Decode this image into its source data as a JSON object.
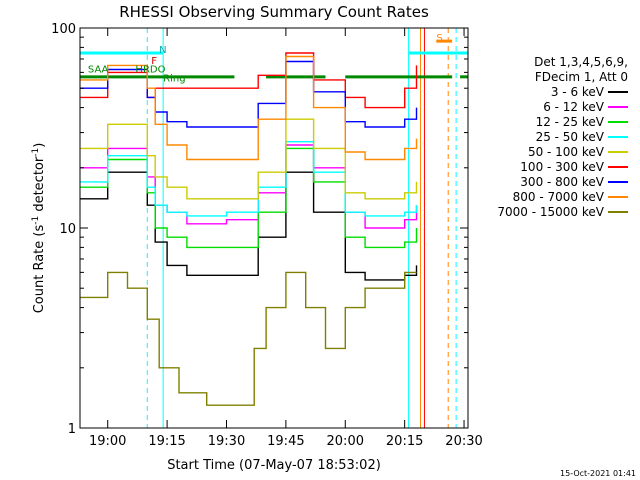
{
  "chart_data": {
    "type": "line",
    "title": "RHESSI Observing Summary Count Rates",
    "xlabel": "Start Time (07-May-07 18:53:02)",
    "ylabel_main": "Count Rate (s",
    "ylabel_sup1": "-1",
    "ylabel_mid": " detector",
    "ylabel_sup2": "-1",
    "ylabel_end": ")",
    "yscale": "log",
    "ylim": [
      1,
      100
    ],
    "xlim": [
      "18:53",
      "20:31"
    ],
    "x_ticks": [
      "19:00",
      "19:15",
      "19:30",
      "19:45",
      "20:00",
      "20:15",
      "20:30"
    ],
    "y_ticks": [
      "1",
      "10",
      "100"
    ],
    "legend_header": [
      "Det 1,3,4,5,6,9,",
      "FDecim 1, Att 0"
    ],
    "series": [
      {
        "name": "3 - 6 keV",
        "color": "#000000",
        "x": [
          "18:53",
          "19:00",
          "19:10",
          "19:12",
          "19:15",
          "19:20",
          "19:30",
          "19:38",
          "19:45",
          "19:52",
          "20:00",
          "20:05",
          "20:15",
          "20:18"
        ],
        "y": [
          14,
          19,
          13,
          8.5,
          6.5,
          5.8,
          5.8,
          9,
          19,
          12,
          6,
          5.5,
          5.8,
          6.5
        ]
      },
      {
        "name": "6 - 12 keV",
        "color": "#ff00ff",
        "x": [
          "18:53",
          "19:00",
          "19:10",
          "19:12",
          "19:15",
          "19:20",
          "19:30",
          "19:38",
          "19:45",
          "19:52",
          "20:00",
          "20:05",
          "20:15",
          "20:18"
        ],
        "y": [
          20,
          25,
          18,
          13,
          12,
          10.5,
          11,
          15,
          26,
          20,
          12,
          10,
          11,
          13
        ]
      },
      {
        "name": "12 - 25 keV",
        "color": "#00dd00",
        "x": [
          "18:53",
          "19:00",
          "19:10",
          "19:12",
          "19:15",
          "19:20",
          "19:30",
          "19:38",
          "19:45",
          "19:52",
          "20:00",
          "20:05",
          "20:15",
          "20:18"
        ],
        "y": [
          16,
          22,
          15,
          10,
          9,
          8,
          8,
          12,
          25,
          17,
          9,
          8,
          8.5,
          10
        ]
      },
      {
        "name": "25 - 50 keV",
        "color": "#00ffff",
        "x": [
          "18:53",
          "19:00",
          "19:10",
          "19:12",
          "19:15",
          "19:20",
          "19:30",
          "19:38",
          "19:45",
          "19:52",
          "20:00",
          "20:05",
          "20:15",
          "20:18"
        ],
        "y": [
          17,
          23,
          16,
          13,
          12,
          11.5,
          12,
          16,
          27,
          19,
          12,
          11.5,
          12,
          13
        ]
      },
      {
        "name": "50 - 100 keV",
        "color": "#cccc00",
        "x": [
          "18:53",
          "19:00",
          "19:10",
          "19:12",
          "19:15",
          "19:20",
          "19:30",
          "19:38",
          "19:45",
          "19:52",
          "20:00",
          "20:05",
          "20:15",
          "20:18"
        ],
        "y": [
          25,
          33,
          23,
          18,
          16,
          14,
          14,
          19,
          35,
          25,
          15,
          14,
          15,
          17
        ]
      },
      {
        "name": "100 - 300 keV",
        "color": "#ff0000",
        "x": [
          "18:53",
          "19:00",
          "19:10",
          "19:12",
          "19:15",
          "19:20",
          "19:30",
          "19:38",
          "19:45",
          "19:52",
          "20:00",
          "20:05",
          "20:15",
          "20:18"
        ],
        "y": [
          45,
          60,
          45,
          50,
          50,
          50,
          50,
          58,
          75,
          55,
          45,
          40,
          50,
          65
        ]
      },
      {
        "name": "300 - 800 keV",
        "color": "#0000ff",
        "x": [
          "18:53",
          "19:00",
          "19:10",
          "19:12",
          "19:15",
          "19:20",
          "19:30",
          "19:38",
          "19:45",
          "19:52",
          "20:00",
          "20:05",
          "20:15",
          "20:18"
        ],
        "y": [
          50,
          62,
          45,
          38,
          34,
          32,
          32,
          42,
          68,
          48,
          34,
          32,
          35,
          40
        ]
      },
      {
        "name": "800 - 7000 keV",
        "color": "#ff8800",
        "x": [
          "18:53",
          "19:00",
          "19:10",
          "19:12",
          "19:15",
          "19:20",
          "19:30",
          "19:38",
          "19:45",
          "19:52",
          "20:00",
          "20:05",
          "20:15",
          "20:18"
        ],
        "y": [
          55,
          65,
          50,
          33,
          26,
          22,
          22,
          35,
          72,
          40,
          24,
          22,
          25,
          28
        ]
      },
      {
        "name": "7000 - 15000 keV",
        "color": "#808000",
        "x": [
          "18:53",
          "19:00",
          "19:05",
          "19:10",
          "19:13",
          "19:18",
          "19:25",
          "19:30",
          "19:37",
          "19:40",
          "19:45",
          "19:50",
          "19:55",
          "20:00",
          "20:05",
          "20:15",
          "20:18"
        ],
        "y": [
          4.5,
          6,
          5,
          3.5,
          2,
          1.5,
          1.3,
          1.3,
          2.5,
          4,
          6,
          4,
          2.5,
          4,
          5,
          6,
          6
        ]
      }
    ],
    "annotations": [
      {
        "text": "N",
        "x": "19:13",
        "y": 75,
        "color": "#00aaaa"
      },
      {
        "text": "F",
        "x": "19:11",
        "y": 66,
        "color": "#cc0000"
      },
      {
        "text": "SAA",
        "x": "18:55",
        "y": 60,
        "color": "#008800"
      },
      {
        "text": "HRDO",
        "x": "19:07",
        "y": 60,
        "color": "#008800"
      },
      {
        "text": "Ring",
        "x": "19:14",
        "y": 54,
        "color": "#008800"
      },
      {
        "text": "S",
        "x": "20:23",
        "y": 86,
        "color": "#ff8800"
      }
    ],
    "flag_bars": [
      {
        "name": "attenuator",
        "color": "#00ffff",
        "segments": [
          [
            "18:53",
            "19:14"
          ],
          [
            "20:16",
            "20:31"
          ]
        ],
        "y": 75
      },
      {
        "name": "decimation",
        "color": "#008800",
        "segments": [
          [
            "18:53",
            "19:32"
          ],
          [
            "19:40",
            "19:55"
          ],
          [
            "20:00",
            "20:27"
          ],
          [
            "20:29",
            "20:31"
          ]
        ],
        "y": 57
      },
      {
        "name": "sunlight",
        "color": "#ff8800",
        "segments": [
          [
            "20:23",
            "20:27"
          ]
        ],
        "y": 86
      }
    ],
    "vlines": [
      {
        "x": "19:10",
        "color": "#00ffff",
        "dashed": true
      },
      {
        "x": "19:14",
        "color": "#00ffff",
        "dashed": false
      },
      {
        "x": "20:16",
        "color": "#00ffff",
        "dashed": false
      },
      {
        "x": "20:19",
        "color": "#ff8800",
        "dashed": false
      },
      {
        "x": "20:20",
        "color": "#ff0000",
        "dashed": false
      },
      {
        "x": "20:26",
        "color": "#ff8800",
        "dashed": true
      },
      {
        "x": "20:28",
        "color": "#00ffff",
        "dashed": true
      }
    ],
    "grid": false,
    "legend_position": "right"
  },
  "footer": {
    "date_label": "15-Oct-2021 01:41"
  }
}
